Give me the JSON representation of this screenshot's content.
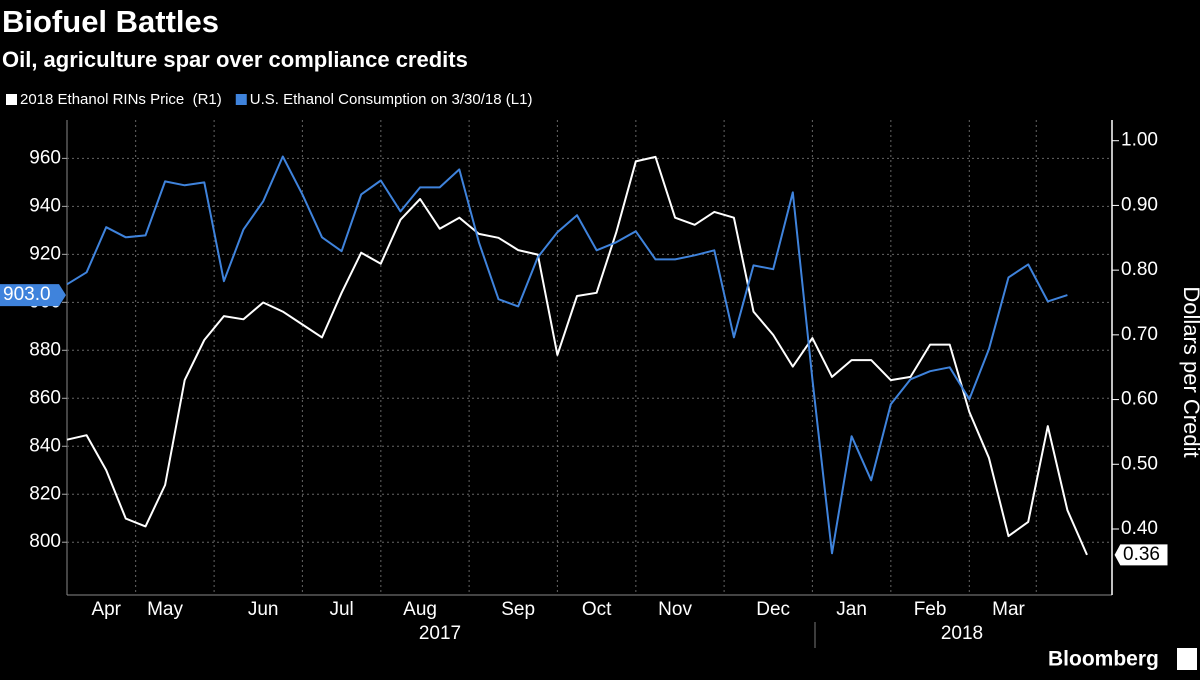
{
  "chart_data": {
    "type": "line",
    "title": "Biofuel Battles",
    "subtitle": "Oil, agriculture spar over compliance credits",
    "y2label": "Dollars per Credit",
    "categories": [
      null,
      null,
      "Apr",
      null,
      null,
      "May",
      null,
      null,
      null,
      null,
      "Jun",
      null,
      null,
      null,
      "Jul",
      null,
      null,
      null,
      "Aug",
      null,
      null,
      null,
      null,
      "Sep",
      null,
      null,
      null,
      "Oct",
      null,
      null,
      null,
      "Nov",
      null,
      null,
      null,
      null,
      "Dec",
      null,
      null,
      null,
      "Jan",
      null,
      null,
      null,
      "Feb",
      null,
      null,
      null,
      "Mar",
      null,
      null,
      null,
      null
    ],
    "years": [
      "2017",
      "2018"
    ],
    "series": [
      {
        "name": "2018 Ethanol RINs Price  (R1)",
        "color": "#ffffff",
        "axis": "y2",
        "values": [
          0.538,
          0.545,
          0.491,
          0.416,
          0.404,
          0.468,
          0.63,
          0.692,
          0.729,
          0.724,
          0.75,
          0.736,
          0.716,
          0.696,
          0.765,
          0.827,
          0.81,
          0.878,
          0.91,
          0.864,
          0.881,
          0.856,
          0.85,
          0.831,
          0.824,
          0.669,
          0.76,
          0.765,
          0.858,
          0.968,
          0.975,
          0.881,
          0.87,
          0.89,
          0.881,
          0.736,
          0.7,
          0.651,
          0.695,
          0.635,
          0.661,
          0.661,
          0.63,
          0.635,
          0.685,
          0.685,
          0.581,
          0.51,
          0.389,
          0.411,
          0.559,
          0.429,
          0.36
        ]
      },
      {
        "name": "U.S. Ethanol Consumption on 3/30/18 (L1)",
        "color": "#3f83dc",
        "axis": "y",
        "values": [
          907.5,
          912.5,
          931.3,
          927.1,
          927.9,
          950.4,
          948.8,
          950,
          908.8,
          930.4,
          942.1,
          960.8,
          945,
          927.1,
          921.3,
          945,
          950.8,
          937.9,
          947.9,
          947.9,
          955.4,
          925,
          901.3,
          898.3,
          918.8,
          929.2,
          936.3,
          921.7,
          925,
          929.6,
          917.9,
          917.9,
          919.6,
          921.7,
          885.4,
          915.4,
          913.8,
          945.8,
          867.9,
          795.4,
          844.2,
          825.8,
          857.5,
          867.9,
          871.3,
          872.9,
          859.6,
          880.4,
          910.4,
          915.8,
          900.4,
          903,
          null
        ],
        "value_labels": [
          null,
          null,
          null,
          null,
          null,
          null,
          null,
          null,
          null,
          null,
          null,
          null,
          null,
          null,
          null,
          null,
          null,
          null,
          null,
          null,
          null,
          null,
          null,
          null,
          null,
          null,
          null,
          null,
          null,
          null,
          null,
          null,
          null,
          null,
          null,
          null,
          null,
          null,
          null,
          null,
          null,
          null,
          null,
          null,
          null,
          null,
          null,
          null,
          null,
          null,
          null,
          "903.0",
          null
        ]
      }
    ],
    "ylim": [
      778,
      976
    ],
    "yticks": [
      800,
      820,
      840,
      860,
      880,
      900,
      920,
      940,
      960
    ],
    "y2lim": [
      0.298,
      1.032
    ],
    "y2ticks": [
      {
        "value": 1,
        "label": "1.00"
      },
      {
        "value": 0.9,
        "label": "0.90"
      },
      {
        "value": 0.8,
        "label": "0.80"
      },
      {
        "value": 0.7,
        "label": "0.70"
      },
      {
        "value": 0.6,
        "label": "0.60"
      },
      {
        "value": 0.5,
        "label": "0.50"
      },
      {
        "value": 0.4,
        "label": "0.40"
      }
    ],
    "grid": true,
    "source": "Bloomberg"
  }
}
